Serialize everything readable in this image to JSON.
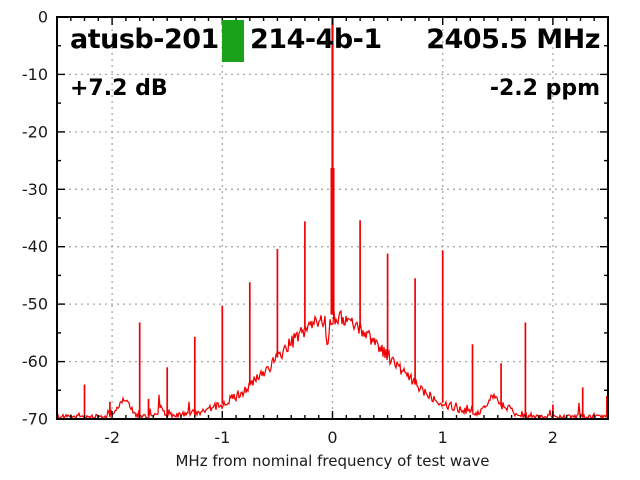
{
  "header": {
    "title_left": "atusb-2011",
    "title_mid": "214-4b-1",
    "freq": "2405.5 MHz",
    "gain": "+7.2 dB",
    "ppm": "-2.2 ppm",
    "marker_color": "#1aa31a"
  },
  "chart_data": {
    "type": "line",
    "title": "atusb-2011 214-4b-1 2405.5 MHz",
    "xlabel": "MHz from nominal frequency of test wave",
    "ylabel": "",
    "xlim": [
      -2.5,
      2.5
    ],
    "ylim": [
      -70,
      0
    ],
    "grid": true,
    "x_axis": {
      "tick_vals": [
        -2,
        -1,
        0,
        1,
        2
      ],
      "tick_labels": [
        "-2",
        "-1",
        "0",
        "1",
        "2"
      ],
      "minor_step": 0.125
    },
    "y_axis": {
      "tick_vals": [
        0,
        -10,
        -20,
        -30,
        -40,
        -50,
        -60,
        -70
      ],
      "tick_labels": [
        "0",
        "-10",
        "-20",
        "-30",
        "-40",
        "-50",
        "-60",
        "-70"
      ],
      "minor_step": 5
    },
    "carrier": {
      "x": 0.0,
      "peak_db": 0.0,
      "thin_to_db": -26.3
    },
    "spurs": [
      {
        "x": -2.25,
        "db": -64.0
      },
      {
        "x": -2.02,
        "db": -67.0
      },
      {
        "x": -1.75,
        "db": -53.2
      },
      {
        "x": -1.67,
        "db": -66.5
      },
      {
        "x": -1.5,
        "db": -61.0
      },
      {
        "x": -1.25,
        "db": -55.7
      },
      {
        "x": -1.0,
        "db": -50.3
      },
      {
        "x": -0.75,
        "db": -46.2
      },
      {
        "x": -0.5,
        "db": -40.4
      },
      {
        "x": -0.25,
        "db": -35.6
      },
      {
        "x": 0.25,
        "db": -35.4
      },
      {
        "x": 0.5,
        "db": -41.2
      },
      {
        "x": 0.75,
        "db": -45.5
      },
      {
        "x": 1.0,
        "db": -40.6
      },
      {
        "x": 1.27,
        "db": -57.0
      },
      {
        "x": 1.53,
        "db": -60.3
      },
      {
        "x": 1.75,
        "db": -53.2
      },
      {
        "x": 2.0,
        "db": -67.5
      },
      {
        "x": 2.27,
        "db": -64.5
      },
      {
        "x": 2.49,
        "db": -66.0
      }
    ],
    "hump": {
      "center": 0.01,
      "peak_db": -52.3,
      "sigma": 0.5
    },
    "noise_floor_db": -69.6,
    "notch": {
      "x": -0.045,
      "depth": 4.0,
      "w": 0.013
    },
    "blobs": [
      {
        "x": -1.89,
        "w": 0.05,
        "amp": 3.0
      },
      {
        "x": -1.56,
        "w": 0.02,
        "amp": 1.5
      },
      {
        "x": 1.46,
        "w": 0.06,
        "amp": 3.2
      },
      {
        "x": 1.61,
        "w": 0.03,
        "amp": 1.5
      }
    ],
    "colors": {
      "trace": "#f00000",
      "grid": "#a8a8a8",
      "border": "#000000",
      "text": "#1a1a1a",
      "background": "#ffffff"
    }
  }
}
